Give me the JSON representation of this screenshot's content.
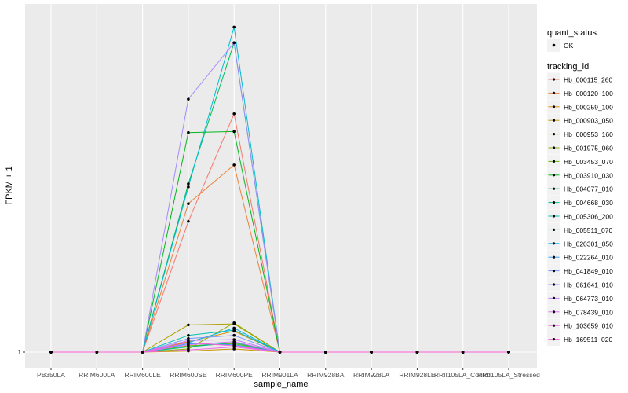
{
  "chart_data": {
    "type": "line",
    "xlabel": "sample_name",
    "ylabel": "FPKM + 1",
    "y_tick_labels": [
      "1"
    ],
    "y_tick_values": [
      1
    ],
    "grid": true,
    "legend_position": "right",
    "categories": [
      "PB350LA",
      "RRIM600LA",
      "RRIM600LE",
      "RRIM600SE",
      "RRIM600PE",
      "RRIM901LA",
      "RRIM928BA",
      "RRIM928LA",
      "RRIM928LE",
      "RRII105LA_Control",
      "RRII105LA_Stressed"
    ],
    "quant_status_legend": {
      "title": "quant_status",
      "items": [
        "OK"
      ]
    },
    "tracking_legend_title": "tracking_id",
    "series": [
      {
        "name": "Hb_000115_260",
        "color": "#F8766D",
        "values": [
          1,
          1,
          1,
          13.5,
          23.8,
          1,
          1,
          1,
          1,
          1,
          1
        ]
      },
      {
        "name": "Hb_000120_100",
        "color": "#EC8239",
        "values": [
          1,
          1,
          1,
          15.2,
          18.9,
          1,
          1,
          1,
          1,
          1,
          1
        ]
      },
      {
        "name": "Hb_000259_100",
        "color": "#DB8E00",
        "values": [
          1,
          1,
          1,
          2.0,
          3.0,
          1,
          1,
          1,
          1,
          1,
          1
        ]
      },
      {
        "name": "Hb_000903_050",
        "color": "#C79800",
        "values": [
          1,
          1,
          1,
          1.1,
          1.3,
          1,
          1,
          1,
          1,
          1,
          1
        ]
      },
      {
        "name": "Hb_000953_160",
        "color": "#AEA200",
        "values": [
          1,
          1,
          1,
          3.6,
          3.7,
          1,
          1,
          1,
          1,
          1,
          1
        ]
      },
      {
        "name": "Hb_001975_060",
        "color": "#8FAA00",
        "values": [
          1,
          1,
          1,
          1.3,
          3.8,
          1,
          1,
          1,
          1,
          1,
          1
        ]
      },
      {
        "name": "Hb_003453_070",
        "color": "#64B200",
        "values": [
          1,
          1,
          1,
          1.6,
          1.8,
          1,
          1,
          1,
          1,
          1,
          1
        ]
      },
      {
        "name": "Hb_003910_030",
        "color": "#00B81B",
        "values": [
          1,
          1,
          1,
          22.0,
          22.1,
          1,
          1,
          1,
          1,
          1,
          1
        ]
      },
      {
        "name": "Hb_004077_010",
        "color": "#00BD5C",
        "values": [
          1,
          1,
          1,
          17.1,
          30.6,
          1,
          1,
          1,
          1,
          1,
          1
        ]
      },
      {
        "name": "Hb_004668_030",
        "color": "#00C08D",
        "values": [
          1,
          1,
          1,
          1.5,
          1.9,
          1,
          1,
          1,
          1,
          1,
          1
        ]
      },
      {
        "name": "Hb_005306_200",
        "color": "#00C1B2",
        "values": [
          1,
          1,
          1,
          2.6,
          3.1,
          1,
          1,
          1,
          1,
          1,
          1
        ]
      },
      {
        "name": "Hb_005511_070",
        "color": "#00BCD1",
        "values": [
          1,
          1,
          1,
          16.8,
          32.1,
          1,
          1,
          1,
          1,
          1,
          1
        ]
      },
      {
        "name": "Hb_020301_050",
        "color": "#00B3EA",
        "values": [
          1,
          1,
          1,
          1.9,
          3.3,
          1,
          1,
          1,
          1,
          1,
          1
        ]
      },
      {
        "name": "Hb_022264_010",
        "color": "#35A2FF",
        "values": [
          1,
          1,
          1,
          1.8,
          1.7,
          1,
          1,
          1,
          1,
          1,
          1
        ]
      },
      {
        "name": "Hb_041849_010",
        "color": "#7997FF",
        "values": [
          1,
          1,
          1,
          2.3,
          2.6,
          1,
          1,
          1,
          1,
          1,
          1
        ]
      },
      {
        "name": "Hb_061641_010",
        "color": "#A58AFF",
        "values": [
          1,
          1,
          1,
          25.2,
          30.6,
          1,
          1,
          1,
          1,
          1,
          1
        ]
      },
      {
        "name": "Hb_064773_010",
        "color": "#C77CFF",
        "values": [
          1,
          1,
          1,
          2.1,
          2.2,
          1,
          1,
          1,
          1,
          1,
          1
        ]
      },
      {
        "name": "Hb_078439_010",
        "color": "#DF70F8",
        "values": [
          1,
          1,
          1,
          1.7,
          2.0,
          1,
          1,
          1,
          1,
          1,
          1
        ]
      },
      {
        "name": "Hb_103659_010",
        "color": "#F066EA",
        "values": [
          1,
          1,
          1,
          1.2,
          1.5,
          1,
          1,
          1,
          1,
          1,
          1
        ]
      },
      {
        "name": "Hb_169511_020",
        "color": "#FB61D7",
        "values": [
          1,
          1,
          1,
          1.9,
          1.6,
          1,
          1,
          1,
          1,
          1,
          1
        ]
      }
    ]
  }
}
